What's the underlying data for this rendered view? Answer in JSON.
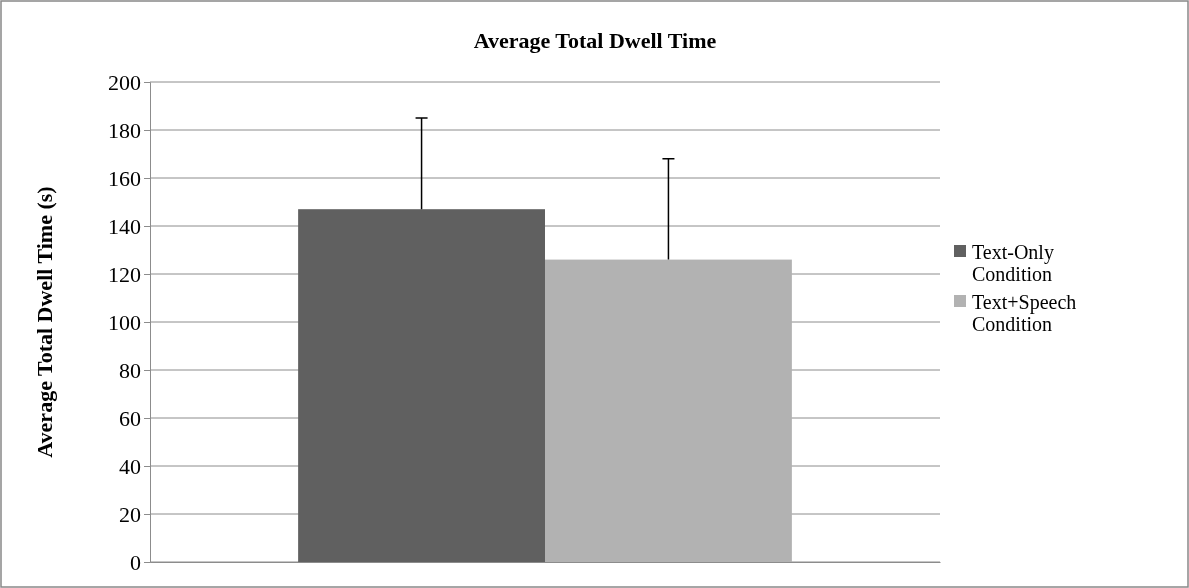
{
  "chart_data": {
    "type": "bar",
    "title": "Average Total Dwell Time",
    "ylabel": "Average Total Dwell Time (s)",
    "categories": [
      null
    ],
    "series": [
      {
        "name": "Text-Only Condition",
        "color": "#606060",
        "values": [
          147
        ],
        "errors": [
          [
            147,
            185
          ]
        ]
      },
      {
        "name": "Text+Speech Condition",
        "color": "#b2b2b2",
        "values": [
          126
        ],
        "errors": [
          [
            126,
            168
          ]
        ]
      }
    ],
    "ylim": [
      0,
      200
    ],
    "yticks": [
      0,
      20,
      40,
      60,
      80,
      100,
      120,
      140,
      160,
      180,
      200
    ],
    "grid": "y",
    "legend": "right"
  }
}
